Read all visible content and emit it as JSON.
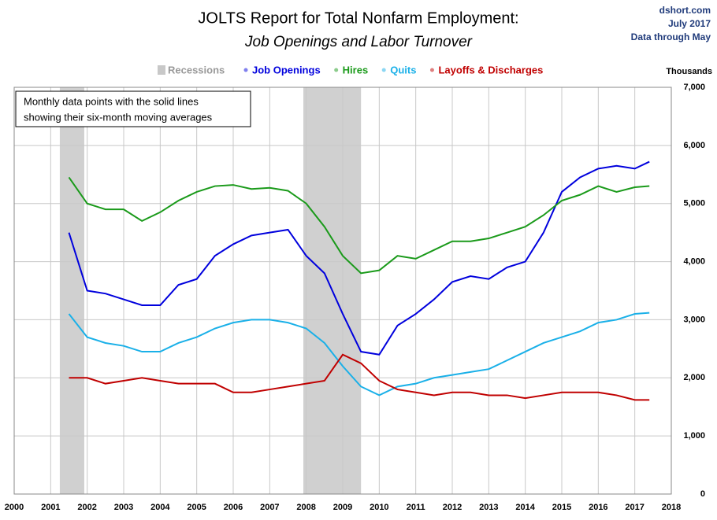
{
  "chart_data": {
    "type": "line",
    "title": "JOLTS Report for Total Nonfarm Employment:",
    "subtitle": "Job Openings and Labor Turnover",
    "source": [
      "dshort.com",
      "July 2017",
      "Data through May"
    ],
    "y_axis_label": "Thousands",
    "annotation": [
      "Monthly data points with the solid lines",
      "showing their six-month moving averages"
    ],
    "recession_label": "Recessions",
    "recessions": [
      [
        2001.25,
        2001.92
      ],
      [
        2007.92,
        2009.5
      ]
    ],
    "x": [
      2001.5,
      2002,
      2002.5,
      2003,
      2003.5,
      2004,
      2004.5,
      2005,
      2005.5,
      2006,
      2006.5,
      2007,
      2007.5,
      2008,
      2008.5,
      2009,
      2009.5,
      2010,
      2010.5,
      2011,
      2011.5,
      2012,
      2012.5,
      2013,
      2013.5,
      2014,
      2014.5,
      2015,
      2015.5,
      2016,
      2016.5,
      2017,
      2017.4
    ],
    "series": [
      {
        "name": "Job Openings",
        "color": "#0000dd",
        "values": [
          4500,
          3500,
          3450,
          3350,
          3250,
          3250,
          3600,
          3700,
          4100,
          4300,
          4450,
          4500,
          4550,
          4100,
          3800,
          3100,
          2450,
          2400,
          2900,
          3100,
          3350,
          3650,
          3750,
          3700,
          3900,
          4000,
          4500,
          5200,
          5450,
          5600,
          5650,
          5600,
          5720
        ]
      },
      {
        "name": "Hires",
        "color": "#1a9a1a",
        "values": [
          5450,
          5000,
          4900,
          4900,
          4700,
          4850,
          5050,
          5200,
          5300,
          5320,
          5250,
          5270,
          5220,
          5000,
          4600,
          4100,
          3800,
          3850,
          4100,
          4050,
          4200,
          4350,
          4350,
          4400,
          4500,
          4600,
          4800,
          5050,
          5150,
          5300,
          5200,
          5280,
          5300
        ]
      },
      {
        "name": "Quits",
        "color": "#1ab0e8",
        "values": [
          3100,
          2700,
          2600,
          2550,
          2450,
          2450,
          2600,
          2700,
          2850,
          2950,
          3000,
          3000,
          2950,
          2850,
          2600,
          2200,
          1850,
          1700,
          1850,
          1900,
          2000,
          2050,
          2100,
          2150,
          2300,
          2450,
          2600,
          2700,
          2800,
          2950,
          3000,
          3100,
          3120
        ]
      },
      {
        "name": "Layoffs & Discharges",
        "color": "#c00000",
        "values": [
          2000,
          2000,
          1900,
          1950,
          2000,
          1950,
          1900,
          1900,
          1900,
          1750,
          1750,
          1800,
          1850,
          1900,
          1950,
          2400,
          2250,
          1950,
          1800,
          1750,
          1700,
          1750,
          1750,
          1700,
          1700,
          1650,
          1700,
          1750,
          1750,
          1750,
          1700,
          1620,
          1620
        ]
      }
    ],
    "xlim": [
      2000,
      2018
    ],
    "xticks": [
      2000,
      2001,
      2002,
      2003,
      2004,
      2005,
      2006,
      2007,
      2008,
      2009,
      2010,
      2011,
      2012,
      2013,
      2014,
      2015,
      2016,
      2017,
      2018
    ],
    "ylim": [
      0,
      7000
    ],
    "yticks": [
      0,
      {
        "value": 1000,
        "label": "1,000"
      },
      {
        "value": 2000,
        "label": "2,000"
      },
      {
        "value": 3000,
        "label": "3,000"
      },
      {
        "value": 4000,
        "label": "4,000"
      },
      {
        "value": 5000,
        "label": "5,000"
      },
      {
        "value": 6000,
        "label": "6,000"
      },
      {
        "value": 7000,
        "label": "7,000"
      }
    ],
    "grid": true
  }
}
